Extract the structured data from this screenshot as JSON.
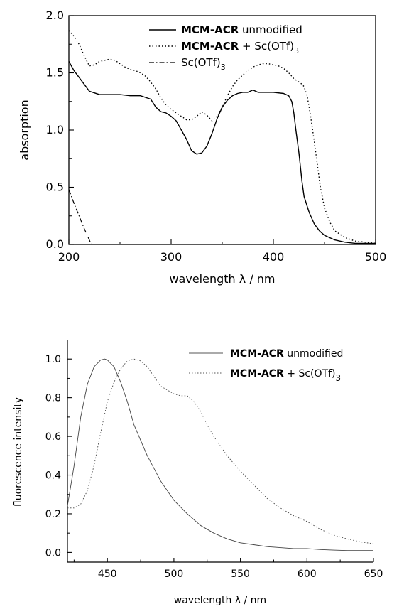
{
  "chart_data": [
    {
      "type": "line",
      "xlabel": "wavelength λ / nm",
      "ylabel": "absorption",
      "xlim": [
        200,
        500
      ],
      "ylim": [
        0,
        2
      ],
      "x_ticks": [
        "200",
        "300",
        "400",
        "500"
      ],
      "y_ticks": [
        "0.0",
        "0.5",
        "1.0",
        "1.5",
        "2.0"
      ],
      "legend_position": "top-right",
      "series": [
        {
          "name_bold": "MCM-ACR",
          "name_rest": " unmodified",
          "style": "solid",
          "x": [
            200,
            205,
            210,
            215,
            220,
            230,
            240,
            250,
            260,
            270,
            280,
            285,
            290,
            295,
            300,
            305,
            310,
            315,
            320,
            325,
            330,
            335,
            340,
            345,
            350,
            355,
            360,
            365,
            370,
            375,
            380,
            385,
            390,
            400,
            410,
            415,
            418,
            420,
            422,
            425,
            428,
            430,
            435,
            440,
            445,
            450,
            460,
            470,
            480,
            490,
            500
          ],
          "y": [
            1.6,
            1.52,
            1.46,
            1.4,
            1.34,
            1.31,
            1.31,
            1.31,
            1.3,
            1.3,
            1.27,
            1.2,
            1.16,
            1.15,
            1.12,
            1.08,
            1.0,
            0.92,
            0.82,
            0.79,
            0.8,
            0.86,
            0.97,
            1.1,
            1.2,
            1.26,
            1.3,
            1.32,
            1.33,
            1.33,
            1.35,
            1.33,
            1.33,
            1.33,
            1.32,
            1.3,
            1.25,
            1.15,
            1.0,
            0.8,
            0.55,
            0.42,
            0.28,
            0.18,
            0.12,
            0.08,
            0.04,
            0.02,
            0.01,
            0.01,
            0.01
          ]
        },
        {
          "name_bold": "MCM-ACR",
          "name_rest": " + Sc(OTf)",
          "name_sub": "3",
          "style": "dotted",
          "x": [
            200,
            205,
            210,
            215,
            220,
            225,
            230,
            235,
            240,
            245,
            250,
            255,
            260,
            265,
            270,
            275,
            280,
            285,
            290,
            295,
            300,
            305,
            310,
            315,
            320,
            325,
            330,
            335,
            340,
            345,
            350,
            355,
            360,
            365,
            370,
            375,
            380,
            385,
            390,
            395,
            400,
            405,
            410,
            415,
            420,
            425,
            428,
            430,
            433,
            436,
            440,
            443,
            446,
            450,
            455,
            460,
            470,
            480,
            490,
            500
          ],
          "y": [
            1.87,
            1.82,
            1.75,
            1.65,
            1.56,
            1.57,
            1.6,
            1.61,
            1.62,
            1.61,
            1.58,
            1.55,
            1.53,
            1.52,
            1.5,
            1.47,
            1.42,
            1.36,
            1.28,
            1.22,
            1.18,
            1.15,
            1.12,
            1.09,
            1.09,
            1.12,
            1.16,
            1.13,
            1.08,
            1.12,
            1.2,
            1.3,
            1.38,
            1.44,
            1.48,
            1.52,
            1.55,
            1.57,
            1.58,
            1.58,
            1.57,
            1.56,
            1.54,
            1.5,
            1.45,
            1.42,
            1.4,
            1.38,
            1.3,
            1.15,
            0.9,
            0.7,
            0.5,
            0.32,
            0.2,
            0.12,
            0.06,
            0.03,
            0.02,
            0.01
          ]
        },
        {
          "name_rest": "Sc(OTf)",
          "name_sub": "3",
          "style": "dashdot",
          "x": [
            200,
            205,
            210,
            215,
            220,
            222
          ],
          "y": [
            0.48,
            0.36,
            0.25,
            0.14,
            0.04,
            0.0
          ]
        }
      ]
    },
    {
      "type": "line",
      "xlabel": "wavelength λ / nm",
      "ylabel": "fluorescence intensity",
      "xlim": [
        420,
        650
      ],
      "ylim": [
        -0.05,
        1.1
      ],
      "x_ticks": [
        "450",
        "500",
        "550",
        "600",
        "650"
      ],
      "y_ticks": [
        "0.0",
        "0.2",
        "0.4",
        "0.6",
        "0.8",
        "1.0"
      ],
      "legend_position": "top-right",
      "series": [
        {
          "name_bold": "MCM-ACR",
          "name_rest": " unmodified",
          "style": "solid",
          "x": [
            420,
            425,
            430,
            435,
            440,
            445,
            448,
            450,
            455,
            460,
            465,
            470,
            480,
            490,
            500,
            510,
            520,
            530,
            540,
            550,
            560,
            570,
            580,
            590,
            600,
            610,
            620,
            630,
            640,
            650
          ],
          "y": [
            0.24,
            0.45,
            0.7,
            0.87,
            0.96,
            0.995,
            1.0,
            0.995,
            0.96,
            0.88,
            0.78,
            0.66,
            0.5,
            0.37,
            0.27,
            0.2,
            0.14,
            0.1,
            0.07,
            0.05,
            0.04,
            0.03,
            0.025,
            0.02,
            0.02,
            0.015,
            0.012,
            0.01,
            0.01,
            0.01
          ]
        },
        {
          "name_bold": "MCM-ACR",
          "name_rest": " + Sc(OTf)",
          "name_sub": "3",
          "style": "dotted",
          "x": [
            420,
            425,
            430,
            435,
            440,
            445,
            450,
            455,
            460,
            465,
            470,
            475,
            480,
            485,
            490,
            495,
            500,
            505,
            510,
            515,
            520,
            525,
            530,
            540,
            550,
            560,
            570,
            580,
            590,
            600,
            610,
            620,
            630,
            640,
            650
          ],
          "y": [
            0.23,
            0.23,
            0.25,
            0.32,
            0.45,
            0.62,
            0.78,
            0.88,
            0.95,
            0.99,
            1.0,
            0.99,
            0.96,
            0.91,
            0.86,
            0.84,
            0.82,
            0.81,
            0.81,
            0.78,
            0.73,
            0.66,
            0.6,
            0.5,
            0.42,
            0.35,
            0.28,
            0.23,
            0.19,
            0.16,
            0.12,
            0.09,
            0.07,
            0.055,
            0.045
          ]
        }
      ]
    }
  ]
}
